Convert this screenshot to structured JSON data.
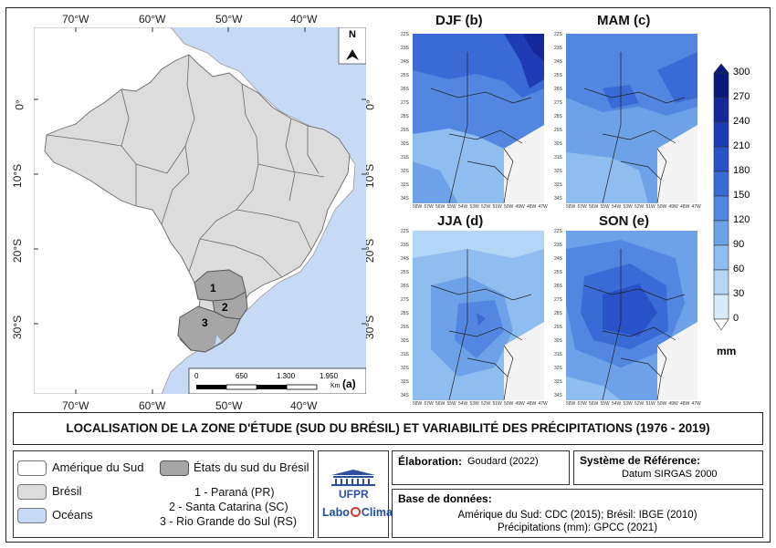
{
  "main_map": {
    "longitude_labels": [
      "70°W",
      "60°W",
      "50°W",
      "40°W"
    ],
    "latitude_labels": [
      "0°",
      "10°S",
      "20°S",
      "30°S"
    ],
    "north_label": "N",
    "state_numbers": [
      "1",
      "2",
      "3"
    ],
    "scale_values": [
      "0",
      "650",
      "1.300",
      "1.950"
    ],
    "scale_unit": "Km",
    "panel_label": "(a)",
    "colors": {
      "ocean": "#c6d9f5",
      "south_america": "#ffffff",
      "brazil": "#dcdcdc",
      "south_states": "#a6a6a6"
    }
  },
  "precip_maps": [
    {
      "title": "DJF (b)"
    },
    {
      "title": "MAM (c)"
    },
    {
      "title": "JJA (d)"
    },
    {
      "title": "SON (e)"
    }
  ],
  "small_map_ticks": {
    "lat": [
      "22S",
      "23S",
      "24S",
      "25S",
      "26S",
      "27S",
      "28S",
      "29S",
      "30S",
      "31S",
      "32S",
      "33S",
      "34S"
    ],
    "lon": [
      "58W",
      "57W",
      "56W",
      "55W",
      "54W",
      "53W",
      "52W",
      "51W",
      "50W",
      "49W",
      "48W",
      "47W"
    ]
  },
  "colorbar": {
    "ticks": [
      "300",
      "270",
      "240",
      "210",
      "180",
      "150",
      "120",
      "90",
      "60",
      "30",
      "0"
    ],
    "unit": "mm",
    "colors": [
      "#0a1a78",
      "#14289a",
      "#1e3cb4",
      "#2a52c8",
      "#3a6ad6",
      "#5286e0",
      "#6ea2e8",
      "#8fbdf0",
      "#b4d6f6",
      "#d8ebfb"
    ]
  },
  "title_bar": {
    "text": "LOCALISATION DE LA ZONE D'ÉTUDE (SUD DU BRÉSIL) ET VARIABILITÉ DES PRÉCIPITATIONS (1976 - 2019)"
  },
  "legend": {
    "south_america": "Amérique du Sud",
    "brazil": "Brésil",
    "oceans": "Océans",
    "states_title": "États du sud du Brésil",
    "states": [
      "1 - Paraná (PR)",
      "2 - Santa Catarina (SC)",
      "3 - Rio Grande do Sul (RS)"
    ]
  },
  "logos": {
    "ufpr": "UFPR",
    "labo": "Labo",
    "clima": "Clima"
  },
  "elaboration": {
    "label": "Élaboration:",
    "value": "Goudard (2022)"
  },
  "reference_system": {
    "label": "Système de Référence:",
    "value": "Datum SIRGAS 2000"
  },
  "database": {
    "label": "Base de données:",
    "line1": "Amérique du Sud: CDC (2015); Brésil: IBGE (2010)",
    "line2": "Précipitations (mm): GPCC (2021)"
  }
}
